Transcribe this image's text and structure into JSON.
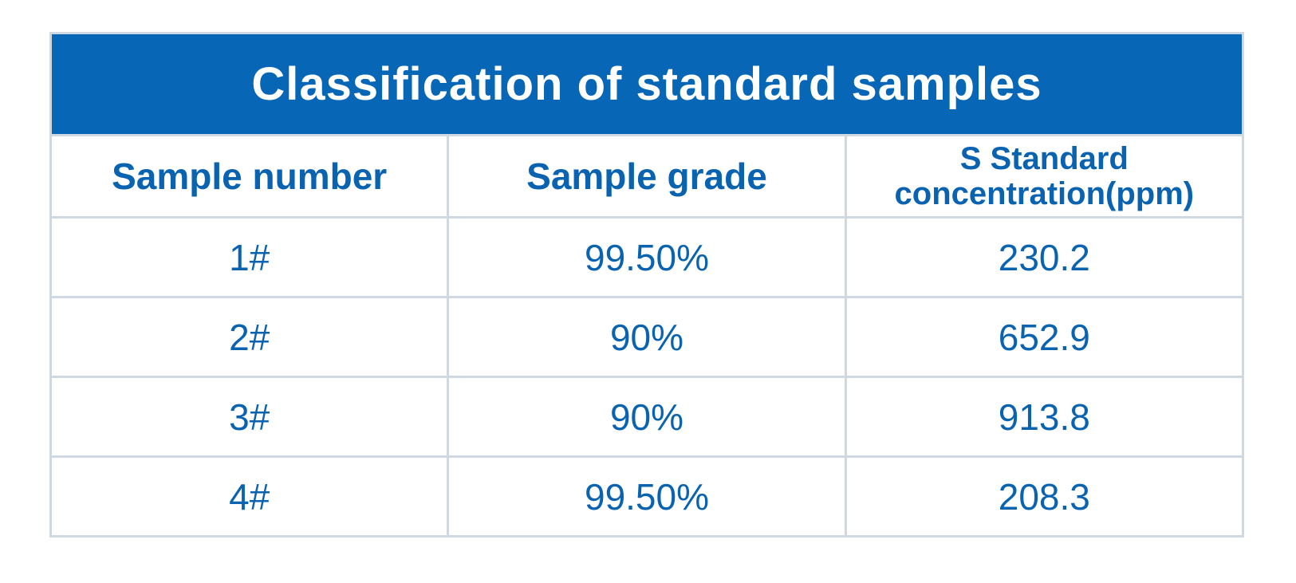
{
  "table": {
    "title": "Classification of standard samples",
    "headers": {
      "col1": "Sample number",
      "col2": "Sample grade",
      "col3_line1": "S Standard",
      "col3_line2": "concentration(ppm)"
    },
    "rows": [
      {
        "number": "1#",
        "grade": "99.50%",
        "concentration": "230.2"
      },
      {
        "number": "2#",
        "grade": "90%",
        "concentration": "652.9"
      },
      {
        "number": "3#",
        "grade": "90%",
        "concentration": "913.8"
      },
      {
        "number": "4#",
        "grade": "99.50%",
        "concentration": "208.3"
      }
    ]
  },
  "colors": {
    "title_background": "#0766b5",
    "text": "#0a63b0",
    "border": "#d0d9e2"
  }
}
